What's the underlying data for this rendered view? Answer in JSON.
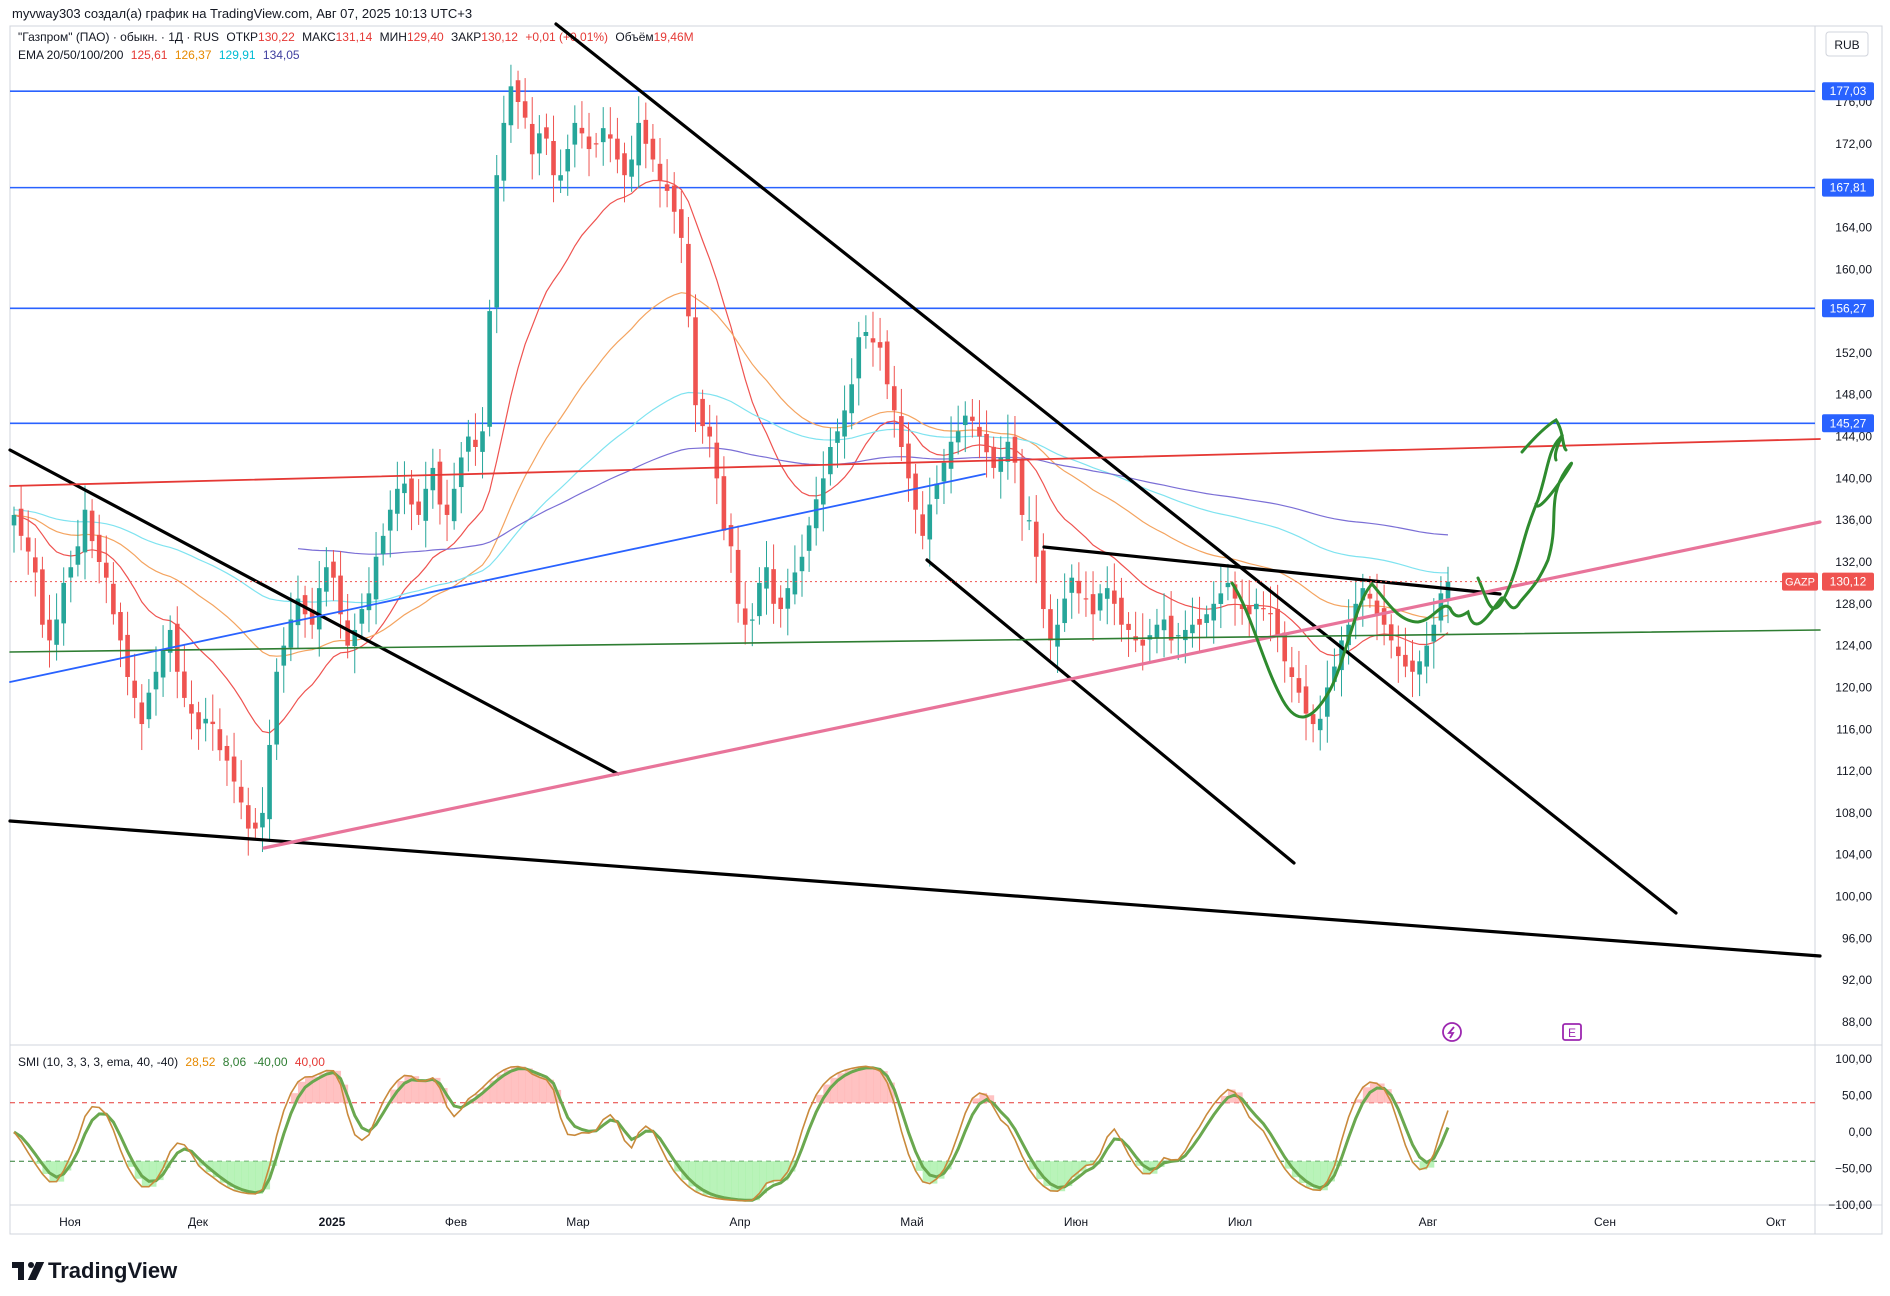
{
  "header": {
    "caption": "myvway303 создал(а) график на TradingView.com, Авг 07, 2025 10:13 UTC+3",
    "symbol_line": "\"Газпром\" (ПАО) · обыкн. · 1Д · RUS",
    "ohlc": {
      "open_label": "ОТКР",
      "open": "130,22",
      "high_label": "МАКС",
      "high": "131,14",
      "low_label": "МИН",
      "low": "129,40",
      "close_label": "ЗАКР",
      "close": "130,12",
      "change": "+0,01 (+0,01%)",
      "volume_label": "Объём",
      "volume": "19,46M"
    },
    "ema_label": "EMA 20/50/100/200",
    "ema_values": [
      "125,61",
      "126,37",
      "129,91",
      "134,05"
    ],
    "ema_colors": [
      "#e53935",
      "#f4a460",
      "#4dd0e1",
      "#3f3f9f"
    ]
  },
  "currency": "RUB",
  "ticker": "GAZP",
  "last_price": "130,12",
  "colors": {
    "up": "#26a69a",
    "down": "#ef5350",
    "level": "#2962ff",
    "pink": "#e8749a",
    "green_line": "#2e7d32",
    "trend": "#000000",
    "red_trend": "#e53935",
    "forecast": "#2e8b2e"
  },
  "level_tags": [
    "177,03",
    "167,81",
    "156,27",
    "145,27"
  ],
  "smi": {
    "label": "SMI (10, 3, 3, 3, ema, 40, -40)",
    "values": [
      "28,52",
      "8,06",
      "-40,00",
      "40,00"
    ],
    "value_colors": [
      "#e68a00",
      "#2e7d32",
      "#2e7d32",
      "#e53935"
    ],
    "ticks": [
      "100,00",
      "50,00",
      "0,00",
      "−50,00",
      "−100,00"
    ]
  },
  "brand": "TradingView",
  "chart_data": {
    "type": "candlestick",
    "y_ticks": [
      "176,00",
      "172,00",
      "168,00",
      "164,00",
      "160,00",
      "156,00",
      "152,00",
      "148,00",
      "144,00",
      "140,00",
      "136,00",
      "132,00",
      "128,00",
      "124,00",
      "120,00",
      "116,00",
      "112,00",
      "108,00",
      "104,00",
      "100,00",
      "96,00",
      "92,00",
      "88,00"
    ],
    "x_ticks": [
      "Ноя",
      "Дек",
      "2025",
      "Фев",
      "Мар",
      "Апр",
      "Май",
      "Июн",
      "Июл",
      "Авг",
      "Сен",
      "Окт"
    ],
    "ylim": [
      86,
      178
    ],
    "close": [
      136.5,
      134.5,
      133,
      131,
      126,
      124.5,
      126.5,
      130,
      131.5,
      133.5,
      137,
      134,
      132,
      130.5,
      127,
      124.5,
      121,
      119,
      116.5,
      119.5,
      121.5,
      123.5,
      125.5,
      121.5,
      119,
      117.5,
      116,
      117,
      116.5,
      114,
      113,
      111,
      109,
      106.5,
      106.5,
      108,
      114.5,
      121.5,
      124,
      126.5,
      128.5,
      127,
      126,
      129.5,
      131.5,
      130.5,
      127,
      124,
      125.5,
      127.5,
      129,
      132.5,
      134.5,
      137,
      139,
      139.5,
      137.5,
      136.5,
      139,
      141,
      137.5,
      136.5,
      139,
      142,
      144,
      143,
      144.5,
      156,
      169,
      174,
      177.5,
      176,
      174.5,
      171,
      173,
      172.5,
      169,
      169,
      171.5,
      174,
      173,
      171.5,
      172,
      173.5,
      172.5,
      170.5,
      169,
      170.5,
      174,
      172,
      170.5,
      168.5,
      167.5,
      165.5,
      163,
      155.5,
      147,
      145,
      144,
      140,
      135,
      133.5,
      128,
      126,
      126.5,
      130,
      131.5,
      128,
      127.5,
      129.5,
      131,
      132.5,
      135.5,
      138,
      140,
      143,
      144.5,
      146.5,
      149,
      153.5,
      154,
      153,
      152.5,
      149,
      146.5,
      143,
      140,
      137,
      134.5,
      137.5,
      139.5,
      141.5,
      143.5,
      144.5,
      146,
      145.5,
      144,
      142.5,
      141,
      142,
      143.5,
      141.5,
      136.5,
      136,
      132.5,
      127.5,
      124.5,
      126,
      128.5,
      130.5,
      129,
      128.5,
      127,
      129,
      129.5,
      128,
      126,
      125.5,
      124.5,
      124,
      125,
      126,
      126.5,
      124.5,
      125,
      125.5,
      126,
      126,
      127,
      128,
      129,
      130,
      128.5,
      127.5,
      127,
      128,
      127.5,
      127,
      125,
      122.5,
      121,
      119.5,
      117.5,
      116.5,
      117,
      120,
      122,
      124.5,
      126,
      128,
      129.5,
      128.5,
      127,
      126,
      124.5,
      123,
      122,
      121.5,
      122.5,
      124,
      126,
      129,
      130.12
    ]
  }
}
